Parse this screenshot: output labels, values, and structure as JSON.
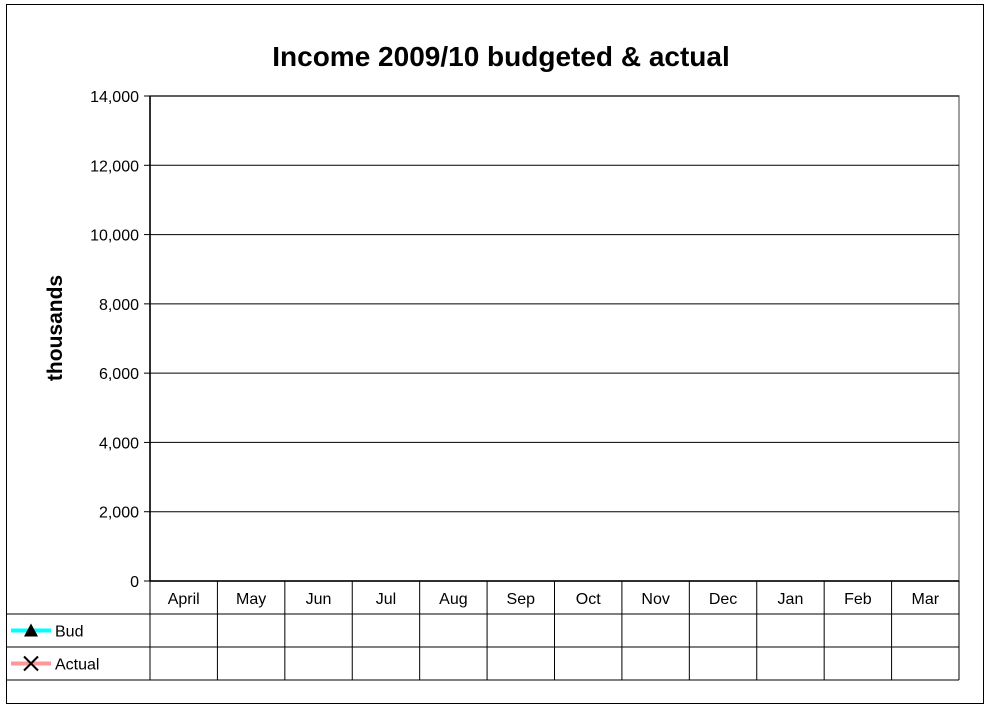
{
  "chart_data": {
    "type": "line",
    "title": "Income 2009/10 budgeted & actual",
    "xlabel": "",
    "ylabel": "thousands",
    "ylim": [
      0,
      14000
    ],
    "yticks": [
      0,
      2000,
      4000,
      6000,
      8000,
      10000,
      12000,
      14000
    ],
    "ytick_labels": [
      "0",
      "2,000",
      "4,000",
      "6,000",
      "8,000",
      "10,000",
      "12,000",
      "14,000"
    ],
    "categories": [
      "April",
      "May",
      "Jun",
      "Jul",
      "Aug",
      "Sep",
      "Oct",
      "Nov",
      "Dec",
      "Jan",
      "Feb",
      "Mar"
    ],
    "grid": true,
    "legend": "data-table",
    "series": [
      {
        "name": "Bud",
        "color": "#00ffff",
        "marker": "triangle",
        "values": [
          null,
          null,
          null,
          null,
          null,
          null,
          null,
          null,
          null,
          null,
          null,
          null
        ]
      },
      {
        "name": "Actual",
        "color": "#ff9999",
        "marker": "x",
        "values": [
          null,
          null,
          null,
          null,
          null,
          null,
          null,
          null,
          null,
          null,
          null,
          null
        ]
      }
    ]
  }
}
